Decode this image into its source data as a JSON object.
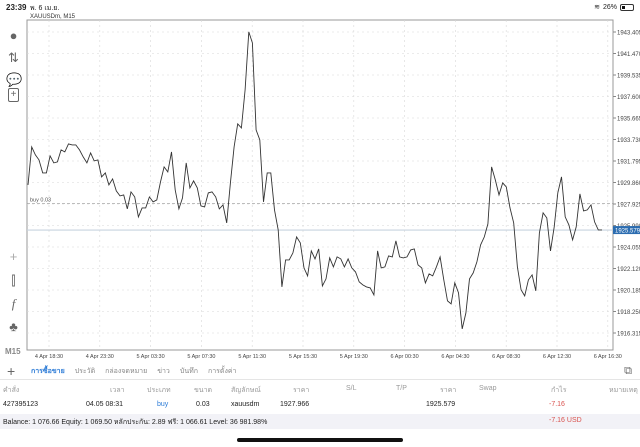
{
  "status": {
    "time": "23:39",
    "date": "พ. 6 เม.ย.",
    "battery": "26%",
    "battery_level": 26
  },
  "toolbar": {
    "icons": [
      "account-icon",
      "trade-icon",
      "chat-icon",
      "new-document-icon",
      "crosshair-icon",
      "chart-type-icon",
      "indicator-icon",
      "objects-icon"
    ],
    "timeframe": "M15"
  },
  "chart": {
    "symbol": "XAUUSDm, M15",
    "buy_line_label": "buy 0.03",
    "colors": {
      "line": "#333333",
      "current": "#2b6cb0",
      "grid": "#d8d8d8"
    },
    "chart_data": {
      "type": "line",
      "title": "XAUUSDm, M15",
      "ylim": [
        1915.3,
        1945.0
      ],
      "y_ticks": [
        "1943.405",
        "1941.470",
        "1939.535",
        "1937.600",
        "1935.665",
        "1933.730",
        "1931.795",
        "1929.860",
        "1927.925",
        "1925.990",
        "1924.055",
        "1922.120",
        "1920.185",
        "1918.250",
        "1916.315"
      ],
      "x_ticks": [
        "4 Apr 18:30",
        "4 Apr 23:30",
        "5 Apr 03:30",
        "5 Apr 07:30",
        "5 Apr 11:30",
        "5 Apr 15:30",
        "5 Apr 19:30",
        "6 Apr 00:30",
        "6 Apr 04:30",
        "6 Apr 08:30",
        "6 Apr 12:30",
        "6 Apr 16:30"
      ],
      "grid": true,
      "buy_level": 1927.966,
      "current_price": "1925.579",
      "values": [
        1929.64,
        1933.06,
        1932.34,
        1931.89,
        1930.72,
        1930.72,
        1932.25,
        1931.62,
        1931.71,
        1932.79,
        1932.61,
        1933.33,
        1933.24,
        1933.24,
        1932.79,
        1932.16,
        1931.62,
        1932.52,
        1931.8,
        1931.89,
        1930.36,
        1930.72,
        1929.64,
        1930.18,
        1929.1,
        1928.65,
        1928.74,
        1927.48,
        1929.01,
        1928.56,
        1926.76,
        1927.57,
        1927.57,
        1928.56,
        1928.11,
        1928.29,
        1929.91,
        1931.26,
        1930.81,
        1932.61,
        1929.19,
        1927.48,
        1928.47,
        1931.62,
        1929.37,
        1930.0,
        1929.37,
        1927.75,
        1927.66,
        1928.92,
        1929.01,
        1928.56,
        1927.48,
        1927.84,
        1926.22,
        1929.82,
        1933.06,
        1935.13,
        1934.77,
        1938.19,
        1943.41,
        1942.42,
        1934.59,
        1933.69,
        1928.11,
        1930.72,
        1930.72,
        1927.39,
        1925.59,
        1920.46,
        1922.89,
        1922.89,
        1923.52,
        1924.96,
        1924.42,
        1922.17,
        1921.45,
        1923.7,
        1922.98,
        1923.88,
        1920.55,
        1921.18,
        1923.07,
        1922.26,
        1923.16,
        1922.98,
        1922.26,
        1922.98,
        1922.17,
        1921.81,
        1920.91,
        1920.64,
        1920.46,
        1920.37,
        1919.74,
        1923.7,
        1922.17,
        1922.26,
        1923.25,
        1923.16,
        1924.6,
        1923.16,
        1923.07,
        1923.16,
        1923.79,
        1923.88,
        1922.44,
        1922.17,
        1920.82,
        1921.63,
        1921.45,
        1922.26,
        1923.16,
        1921.09,
        1919.2,
        1918.93,
        1920.82,
        1919.92,
        1916.68,
        1918.12,
        1921.18,
        1921.72,
        1922.71,
        1924.24,
        1924.96,
        1926.13,
        1931.26,
        1930.09,
        1928.74,
        1929.82,
        1929.46,
        1927.57,
        1926.22,
        1922.26,
        1920.19,
        1919.65,
        1921.09,
        1921.54,
        1920.1,
        1925.32,
        1927.12,
        1926.67,
        1923.7,
        1925.86,
        1928.92,
        1930.36,
        1926.76,
        1926.04,
        1924.69,
        1925.86,
        1928.83,
        1927.3,
        1927.39,
        1927.84,
        1926.31,
        1925.59,
        1925.59
      ]
    }
  },
  "tabs": [
    "การซื้อขาย",
    "ประวัติ",
    "กล่องจดหมาย",
    "ข่าว",
    "บันทึก",
    "การตั้งค่า"
  ],
  "table": {
    "headers": [
      "คำสั่ง",
      "เวลา",
      "ประเภท",
      "ขนาด",
      "สัญลักษณ์",
      "ราคา",
      "S/L",
      "T/P",
      "ราคา",
      "Swap",
      "กำไร",
      "หมายเหตุ"
    ],
    "row": {
      "order": "427395123",
      "time": "04.05 08:31",
      "type": "buy",
      "size": "0.03",
      "symbol": "xauusdm",
      "open_price": "1927.966",
      "sl": "",
      "tp": "",
      "price": "1925.579",
      "swap": "",
      "profit": "-7.16",
      "comment": ""
    },
    "balance_text": "Balance: 1 076.66 Equity: 1 069.50 หลักประกัน: 2.89 ฟรี: 1 066.61 Level: 36 981.98%",
    "total_profit": "-7.16  USD"
  }
}
